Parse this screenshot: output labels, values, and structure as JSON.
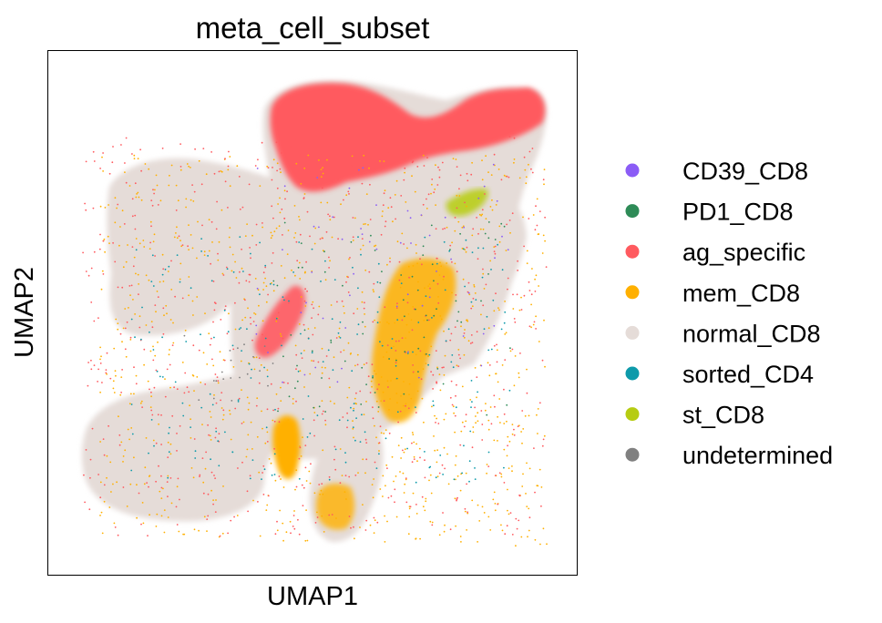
{
  "chart_data": {
    "type": "scatter",
    "title": "meta_cell_subset",
    "xlabel": "UMAP1",
    "ylabel": "UMAP2",
    "x_ticks": [],
    "y_ticks": [],
    "grid": false,
    "legend_position": "right",
    "series": [
      {
        "name": "CD39_CD8",
        "color": "#8b5cf6"
      },
      {
        "name": "PD1_CD8",
        "color": "#2e8b57"
      },
      {
        "name": "ag_specific",
        "color": "#ff5a5f"
      },
      {
        "name": "mem_CD8",
        "color": "#ffb000"
      },
      {
        "name": "normal_CD8",
        "color": "#e5dcd8"
      },
      {
        "name": "sorted_CD4",
        "color": "#0d9aaa"
      },
      {
        "name": "st_CD8",
        "color": "#b6cc12"
      },
      {
        "name": "undetermined",
        "color": "#808080"
      }
    ]
  }
}
